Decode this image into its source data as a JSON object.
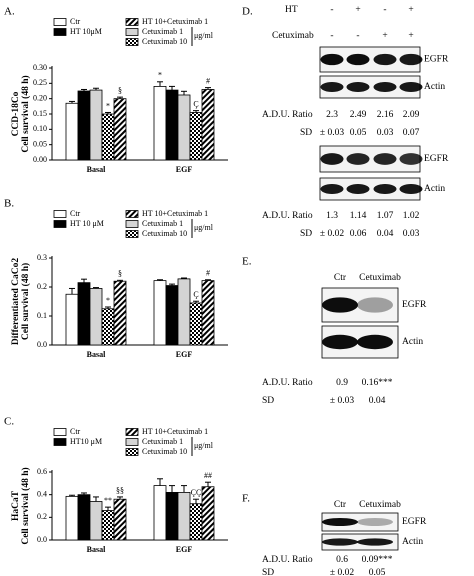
{
  "chart_data": [
    {
      "type": "bar",
      "panel": "A.",
      "ylabel": [
        "CCD-18Co",
        "Cell survival (48 h)"
      ],
      "legend_unit": "μg/ml",
      "categories": [
        "Basal",
        "EGF"
      ],
      "ylim": [
        0,
        0.3
      ],
      "yticks": [
        {
          "value": 0,
          "label": "0.00"
        },
        0.05,
        {
          "value": 0.1,
          "label": "0.10"
        },
        0.15,
        {
          "value": 0.2,
          "label": "0.20"
        },
        0.25,
        {
          "value": 0.3,
          "label": "0.30"
        }
      ],
      "series": [
        {
          "name": "Ctr",
          "color": "#ffffff",
          "values": [
            0.185,
            0.24
          ],
          "errors": [
            0.006,
            0.015
          ],
          "markers": [
            null,
            "*"
          ]
        },
        {
          "name": "HT 10μM",
          "color": "#000000",
          "values": [
            0.225,
            0.228
          ],
          "errors": [
            0.005,
            0.012
          ],
          "markers": [
            null,
            null
          ]
        },
        {
          "name": "Cetuximab 1",
          "color": "#d4d4d4",
          "values": [
            0.228,
            0.212
          ],
          "errors": [
            0.006,
            0.012
          ],
          "markers": [
            null,
            null
          ]
        },
        {
          "name": "Cetuximab 10",
          "color": "#000000",
          "pattern": "checker",
          "values": [
            0.15,
            0.155
          ],
          "errors": [
            0.005,
            0.006
          ],
          "markers": [
            "*",
            "Ç"
          ]
        },
        {
          "name": "HT 10+Cetuximab 1",
          "color": "#000000",
          "pattern": "hatch",
          "values": [
            0.2,
            0.23
          ],
          "errors": [
            0.005,
            0.006
          ],
          "markers": [
            "§",
            "#"
          ]
        }
      ]
    },
    {
      "type": "bar",
      "panel": "B.",
      "ylabel": [
        "Differentiated CaCo2",
        "Cell survival (48 h)"
      ],
      "legend_unit": "μg/ml",
      "categories": [
        "Basal",
        "EGF"
      ],
      "ylim": [
        0,
        0.3
      ],
      "yticks": [
        {
          "value": 0,
          "label": "0.0"
        },
        0.1,
        0.2,
        0.3
      ],
      "series": [
        {
          "name": "Ctr",
          "color": "#ffffff",
          "values": [
            0.175,
            0.222
          ],
          "errors": [
            0.02,
            0.003
          ],
          "markers": [
            null,
            null
          ]
        },
        {
          "name": "HT 10 μM",
          "color": "#000000",
          "values": [
            0.215,
            0.205
          ],
          "errors": [
            0.012,
            0.005
          ],
          "markers": [
            null,
            null
          ]
        },
        {
          "name": "Cetuximab 1",
          "color": "#d4d4d4",
          "values": [
            0.195,
            0.228
          ],
          "errors": [
            0.003,
            0.003
          ],
          "markers": [
            null,
            null
          ]
        },
        {
          "name": "Cetuximab 10",
          "color": "#000000",
          "pattern": "checker",
          "values": [
            0.125,
            0.145
          ],
          "errors": [
            0.006,
            0.006
          ],
          "markers": [
            "*",
            "Ç"
          ]
        },
        {
          "name": "HT 10+Cetuximab 1",
          "color": "#000000",
          "pattern": "hatch",
          "values": [
            0.22,
            0.222
          ],
          "errors": [
            0.003,
            0.003
          ],
          "markers": [
            "§",
            "#"
          ]
        }
      ]
    },
    {
      "type": "bar",
      "panel": "C.",
      "ylabel": [
        "HaCaT",
        "Cell survival (48 h)"
      ],
      "legend_unit": "μg/ml",
      "categories": [
        "Basal",
        "EGF"
      ],
      "ylim": [
        0,
        0.6
      ],
      "yticks": [
        {
          "value": 0,
          "label": "0.0"
        },
        0.2,
        0.4,
        0.6
      ],
      "series": [
        {
          "name": "Ctr",
          "color": "#ffffff",
          "values": [
            0.385,
            0.48
          ],
          "errors": [
            0.01,
            0.06
          ],
          "markers": [
            null,
            null
          ]
        },
        {
          "name": "HT10 μM",
          "color": "#000000",
          "values": [
            0.4,
            0.42
          ],
          "errors": [
            0.015,
            0.06
          ],
          "markers": [
            null,
            null
          ]
        },
        {
          "name": "Cetuximab 1",
          "color": "#d4d4d4",
          "values": [
            0.34,
            0.42
          ],
          "errors": [
            0.04,
            0.06
          ],
          "markers": [
            null,
            null
          ]
        },
        {
          "name": "Cetuximab 10",
          "color": "#000000",
          "pattern": "checker",
          "values": [
            0.26,
            0.32
          ],
          "errors": [
            0.03,
            0.04
          ],
          "markers": [
            "**",
            "ÇÇ"
          ]
        },
        {
          "name": "HT 10+Cetuximab 1",
          "color": "#000000",
          "pattern": "hatch",
          "values": [
            0.36,
            0.47
          ],
          "errors": [
            0.02,
            0.04
          ],
          "markers": [
            "§§",
            "##"
          ]
        }
      ]
    }
  ],
  "blots": [
    {
      "panel": "D.",
      "header": [
        {
          "name": "HT",
          "signs": [
            "-",
            "+",
            "-",
            "+"
          ]
        },
        {
          "name": "Cetuximab",
          "signs": [
            "-",
            "-",
            "+",
            "+"
          ]
        }
      ],
      "sections": [
        {
          "bands": [
            "EGFR",
            "Actin"
          ],
          "ratio_label": "A.D.U. Ratio",
          "ratios": [
            2.3,
            2.49,
            2.16,
            2.09
          ],
          "sd_label": "SD",
          "sd": [
            "± 0.03",
            0.05,
            0.03,
            0.07
          ]
        },
        {
          "bands": [
            "EGFR",
            "Actin"
          ],
          "ratio_label": "A.D.U. Ratio",
          "ratios": [
            1.3,
            1.14,
            1.07,
            1.02
          ],
          "sd_label": "SD",
          "sd": [
            "± 0.02",
            0.06,
            0.04,
            0.03
          ]
        }
      ]
    },
    {
      "panel": "E.",
      "lanes": [
        "Ctr",
        "Cetuximab"
      ],
      "sections": [
        {
          "bands": [
            "EGFR",
            "Actin"
          ],
          "ratio_label": "A.D.U. Ratio",
          "ratios": [
            0.9,
            "0.16***"
          ],
          "sd_label": "SD",
          "sd": [
            "± 0.03",
            0.04
          ]
        }
      ]
    },
    {
      "panel": "F.",
      "lanes": [
        "Ctr",
        "Cetuximab"
      ],
      "sections": [
        {
          "bands": [
            "EGFR",
            "Actin"
          ],
          "ratio_label": "A.D.U. Ratio",
          "ratios": [
            0.6,
            "0.09***"
          ],
          "sd_label": "SD",
          "sd": [
            "± 0.02",
            0.05
          ]
        }
      ]
    }
  ]
}
